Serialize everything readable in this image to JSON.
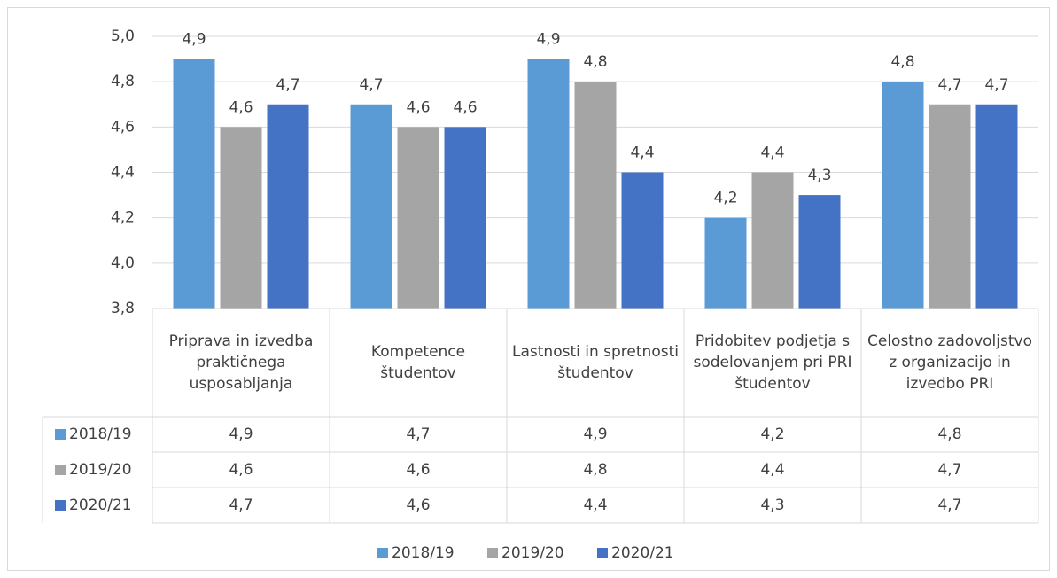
{
  "chart_data": {
    "type": "bar",
    "categories": [
      "Priprava in izvedba praktičnega usposabljanja",
      "Kompetence študentov",
      "Lastnosti in spretnosti študentov",
      "Pridobitev podjetja s sodelovanjem pri PRI študentov",
      "Celostno zadovoljstvo z organizacijo in izvedbo PRI"
    ],
    "series": [
      {
        "name": "2018/19",
        "color": "#5b9bd5",
        "values": [
          4.9,
          4.7,
          4.9,
          4.2,
          4.8
        ],
        "value_labels": [
          "4,9",
          "4,7",
          "4,9",
          "4,2",
          "4,8"
        ]
      },
      {
        "name": "2019/20",
        "color": "#a5a5a5",
        "values": [
          4.6,
          4.6,
          4.8,
          4.4,
          4.7
        ],
        "value_labels": [
          "4,6",
          "4,6",
          "4,8",
          "4,4",
          "4,7"
        ]
      },
      {
        "name": "2020/21",
        "color": "#4472c4",
        "values": [
          4.7,
          4.6,
          4.4,
          4.3,
          4.7
        ],
        "value_labels": [
          "4,7",
          "4,6",
          "4,4",
          "4,3",
          "4,7"
        ]
      }
    ],
    "ylim": [
      3.8,
      5.0
    ],
    "yticks": [
      {
        "value": 3.8,
        "label": "3,8"
      },
      {
        "value": 4.0,
        "label": "4,0"
      },
      {
        "value": 4.2,
        "label": "4,2"
      },
      {
        "value": 4.4,
        "label": "4,4"
      },
      {
        "value": 4.6,
        "label": "4,6"
      },
      {
        "value": 4.8,
        "label": "4,8"
      },
      {
        "value": 5.0,
        "label": "5,0"
      }
    ],
    "grid": true,
    "legend": "bottom",
    "data_table": true
  }
}
